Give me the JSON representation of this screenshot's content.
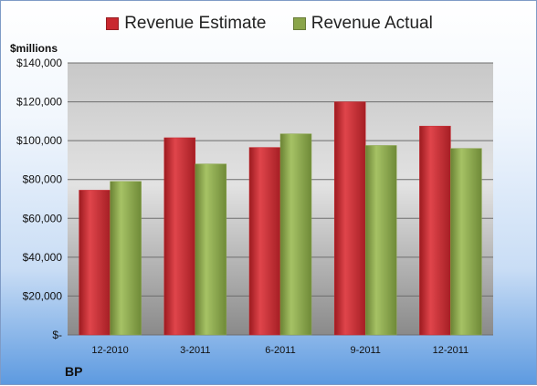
{
  "chart_data": {
    "type": "bar",
    "categories": [
      "12-2010",
      "3-2011",
      "6-2011",
      "9-2011",
      "12-2011"
    ],
    "series": [
      {
        "name": "Revenue Estimate",
        "values": [
          74500,
          101500,
          96500,
          120000,
          107500
        ]
      },
      {
        "name": "Revenue Actual",
        "values": [
          79000,
          88000,
          103500,
          97500,
          96000
        ]
      }
    ],
    "ylabel": "$millions",
    "ylim": [
      0,
      140000
    ],
    "yticks": [
      0,
      20000,
      40000,
      60000,
      80000,
      100000,
      120000,
      140000
    ],
    "ytick_labels": [
      "$-",
      "$20,000",
      "$40,000",
      "$60,000",
      "$80,000",
      "$100,000",
      "$120,000",
      "$140,000"
    ],
    "grid": true,
    "legend_position": "top"
  },
  "company": "BP",
  "colors": {
    "estimate": "#c9282f",
    "actual": "#8aa54a"
  }
}
